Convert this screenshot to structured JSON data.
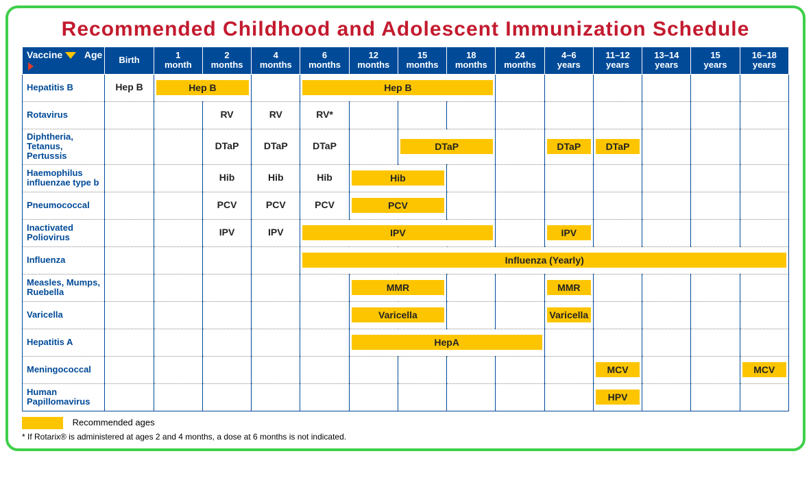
{
  "title": "Recommended Childhood and Adolescent Immunization Schedule",
  "colors": {
    "frame_border": "#3fcf4a",
    "title": "#c31a2e",
    "header_bg": "#004a98",
    "header_text": "#ffffff",
    "vaccine_name": "#004a98",
    "dose_bg": "#fdc500",
    "dose_text": "#222222",
    "triangle_down": "#fdc500",
    "triangle_right": "#e03b2a",
    "grid_border": "#004a98",
    "row_divider": "#888888"
  },
  "corner": {
    "vaccine": "Vaccine",
    "age": "Age"
  },
  "ages": [
    {
      "line1": "Birth",
      "line2": ""
    },
    {
      "line1": "1",
      "line2": "month"
    },
    {
      "line1": "2",
      "line2": "months"
    },
    {
      "line1": "4",
      "line2": "months"
    },
    {
      "line1": "6",
      "line2": "months"
    },
    {
      "line1": "12",
      "line2": "months"
    },
    {
      "line1": "15",
      "line2": "months"
    },
    {
      "line1": "18",
      "line2": "months"
    },
    {
      "line1": "24",
      "line2": "months"
    },
    {
      "line1": "4–6",
      "line2": "years"
    },
    {
      "line1": "11–12",
      "line2": "years"
    },
    {
      "line1": "13–14",
      "line2": "years"
    },
    {
      "line1": "15",
      "line2": "years"
    },
    {
      "line1": "16–18",
      "line2": "years"
    }
  ],
  "vaccines": [
    {
      "name": "Hepatitis B",
      "doses": [
        {
          "start": 0,
          "span": 1,
          "label": "Hep B",
          "highlight": false
        },
        {
          "start": 1,
          "span": 2,
          "label": "Hep B",
          "highlight": true
        },
        {
          "start": 4,
          "span": 4,
          "label": "Hep B",
          "highlight": true
        }
      ]
    },
    {
      "name": "Rotavirus",
      "doses": [
        {
          "start": 2,
          "span": 1,
          "label": "RV",
          "highlight": false
        },
        {
          "start": 3,
          "span": 1,
          "label": "RV",
          "highlight": false
        },
        {
          "start": 4,
          "span": 1,
          "label": "RV*",
          "highlight": false
        }
      ]
    },
    {
      "name": "Diphtheria, Tetanus, Pertussis",
      "doses": [
        {
          "start": 2,
          "span": 1,
          "label": "DTaP",
          "highlight": false
        },
        {
          "start": 3,
          "span": 1,
          "label": "DTaP",
          "highlight": false
        },
        {
          "start": 4,
          "span": 1,
          "label": "DTaP",
          "highlight": false
        },
        {
          "start": 6,
          "span": 2,
          "label": "DTaP",
          "highlight": true
        },
        {
          "start": 9,
          "span": 1,
          "label": "DTaP",
          "highlight": true
        },
        {
          "start": 10,
          "span": 1,
          "label": "DTaP",
          "highlight": true
        }
      ]
    },
    {
      "name": "Haemophilus influenzae type b",
      "doses": [
        {
          "start": 2,
          "span": 1,
          "label": "Hib",
          "highlight": false
        },
        {
          "start": 3,
          "span": 1,
          "label": "Hib",
          "highlight": false
        },
        {
          "start": 4,
          "span": 1,
          "label": "Hib",
          "highlight": false
        },
        {
          "start": 5,
          "span": 2,
          "label": "Hib",
          "highlight": true
        }
      ]
    },
    {
      "name": "Pneumococcal",
      "doses": [
        {
          "start": 2,
          "span": 1,
          "label": "PCV",
          "highlight": false
        },
        {
          "start": 3,
          "span": 1,
          "label": "PCV",
          "highlight": false
        },
        {
          "start": 4,
          "span": 1,
          "label": "PCV",
          "highlight": false
        },
        {
          "start": 5,
          "span": 2,
          "label": "PCV",
          "highlight": true
        }
      ]
    },
    {
      "name": "Inactivated Poliovirus",
      "doses": [
        {
          "start": 2,
          "span": 1,
          "label": "IPV",
          "highlight": false
        },
        {
          "start": 3,
          "span": 1,
          "label": "IPV",
          "highlight": false
        },
        {
          "start": 4,
          "span": 4,
          "label": "IPV",
          "highlight": true
        },
        {
          "start": 9,
          "span": 1,
          "label": "IPV",
          "highlight": true
        }
      ]
    },
    {
      "name": "Influenza",
      "doses": [
        {
          "start": 4,
          "span": 10,
          "label": "Influenza (Yearly)",
          "highlight": true
        }
      ]
    },
    {
      "name": "Measles, Mumps, Ruebella",
      "doses": [
        {
          "start": 5,
          "span": 2,
          "label": "MMR",
          "highlight": true
        },
        {
          "start": 9,
          "span": 1,
          "label": "MMR",
          "highlight": true
        }
      ]
    },
    {
      "name": "Varicella",
      "doses": [
        {
          "start": 5,
          "span": 2,
          "label": "Varicella",
          "highlight": true
        },
        {
          "start": 9,
          "span": 1,
          "label": "Varicella",
          "highlight": true
        }
      ]
    },
    {
      "name": "Hepatitis A",
      "doses": [
        {
          "start": 5,
          "span": 4,
          "label": "HepA",
          "highlight": true
        }
      ]
    },
    {
      "name": "Meningococcal",
      "doses": [
        {
          "start": 10,
          "span": 1,
          "label": "MCV",
          "highlight": true
        },
        {
          "start": 13,
          "span": 1,
          "label": "MCV",
          "highlight": true
        }
      ]
    },
    {
      "name": "Human Papillomavirus",
      "doses": [
        {
          "start": 10,
          "span": 1,
          "label": "HPV",
          "highlight": true
        }
      ]
    }
  ],
  "legend": {
    "label": "Recommended ages"
  },
  "footnote": "* If Rotarix® is administered at ages 2 and 4 months, a dose at 6 months is not indicated."
}
